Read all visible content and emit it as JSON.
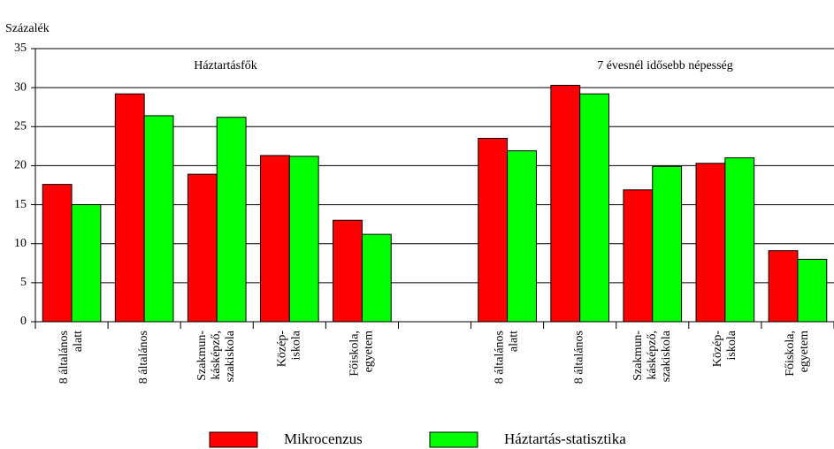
{
  "chart_data": {
    "type": "bar",
    "y_label": "Százalék",
    "annotations": [
      "Háztartásfők",
      "7 évesnél idősebb népesség"
    ],
    "categories": [
      [
        "8 általános",
        "alatt"
      ],
      [
        "8 általános"
      ],
      [
        "Szakmun-",
        "kásképző,",
        "szakiskola"
      ],
      [
        "Közép-",
        "iskola"
      ],
      [
        "Főiskola,",
        "egyetem"
      ],
      null,
      [
        "8 általános",
        "alatt"
      ],
      [
        "8 általános"
      ],
      [
        "Szakmun-",
        "kásképző,",
        "szakiskola"
      ],
      [
        "Közép-",
        "iskola"
      ],
      [
        "Főiskola,",
        "egyetem"
      ]
    ],
    "series": [
      {
        "name": "Mikrocenzus",
        "color": "#ff0000",
        "values": [
          17.6,
          29.2,
          18.9,
          21.3,
          13.0,
          null,
          23.5,
          30.3,
          16.9,
          20.3,
          9.1
        ]
      },
      {
        "name": "Háztartás-statisztika",
        "color": "#00ff00",
        "values": [
          15.0,
          26.4,
          26.2,
          21.2,
          11.2,
          null,
          21.9,
          29.2,
          19.9,
          21.0,
          8.0
        ]
      }
    ],
    "ylim": [
      0,
      35
    ],
    "yticks": [
      0,
      5,
      10,
      15,
      20,
      25,
      30,
      35
    ],
    "grid": true
  }
}
